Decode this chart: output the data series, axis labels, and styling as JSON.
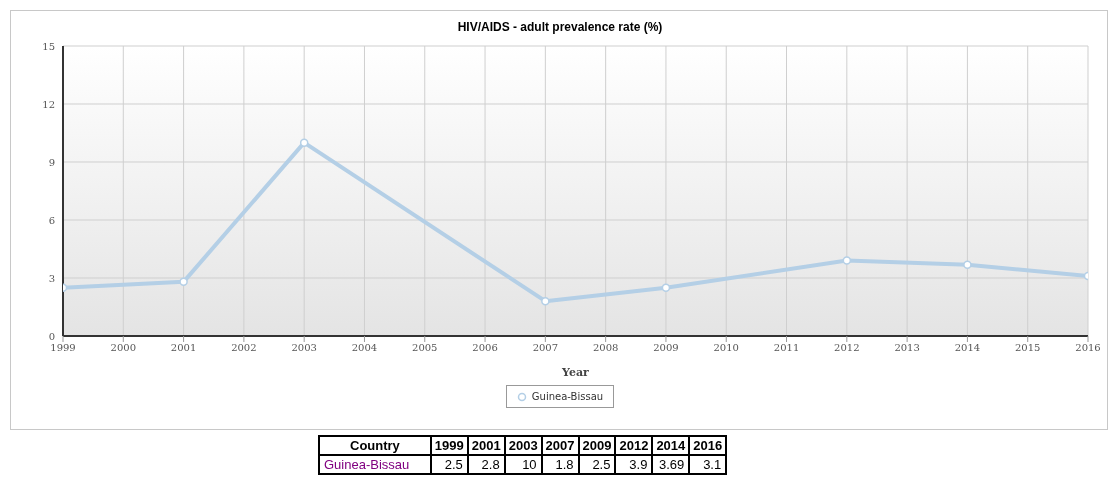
{
  "chart_data": {
    "type": "line",
    "title": "HIV/AIDS - adult prevalence rate (%)",
    "xlabel": "Year",
    "x": [
      1999,
      2001,
      2003,
      2007,
      2009,
      2012,
      2014,
      2016
    ],
    "series": [
      {
        "name": "Guinea-Bissau",
        "color": "#b4cfe6",
        "values": [
          2.5,
          2.8,
          10,
          1.8,
          2.5,
          3.9,
          3.69,
          3.1
        ]
      }
    ],
    "xlim": [
      1999,
      2016
    ],
    "xticks": [
      1999,
      2000,
      2001,
      2002,
      2003,
      2004,
      2005,
      2006,
      2007,
      2008,
      2009,
      2010,
      2011,
      2012,
      2013,
      2014,
      2015,
      2016
    ],
    "ylim": [
      0,
      15
    ],
    "yticks": [
      0,
      3,
      6,
      9,
      12,
      15
    ],
    "grid": true,
    "legend": "bottom",
    "marker": "circle",
    "line_style": "solid",
    "annotations": [
      "Country",
      "1999",
      "2001",
      "2003",
      "2007",
      "2009",
      "2012",
      "2014",
      "2016",
      "Guinea-Bissau",
      "2.5",
      "2.8",
      "10",
      "1.8",
      "2.5",
      "3.9",
      "3.69",
      "3.1"
    ]
  }
}
